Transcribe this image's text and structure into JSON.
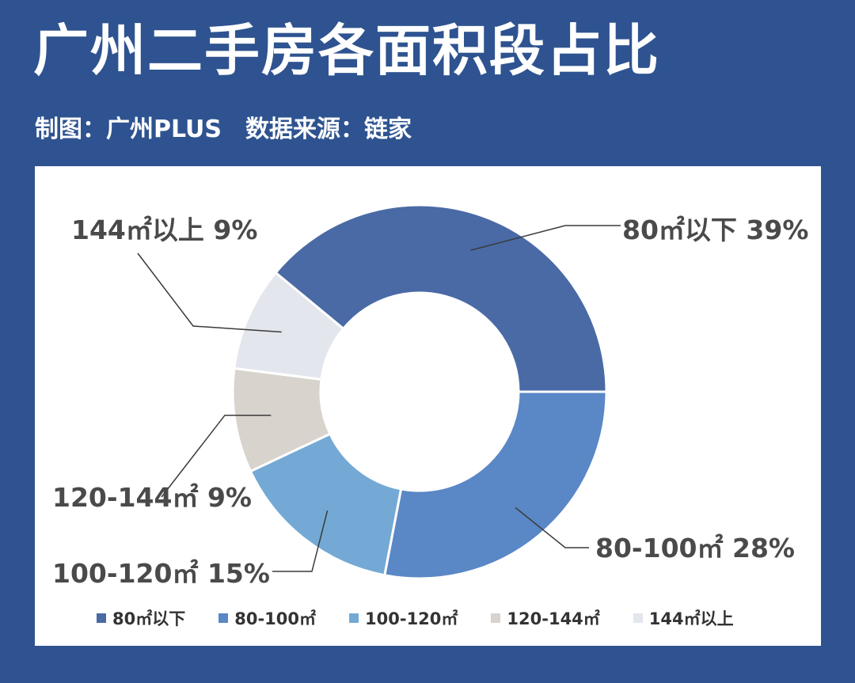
{
  "header": {
    "title": "广州二手房各面积段占比",
    "subtitle": "制图：广州PLUS　数据来源：链家"
  },
  "chart_data": {
    "type": "pie",
    "donut": true,
    "categories": [
      "80㎡以下",
      "80-100㎡",
      "100-120㎡",
      "120-144㎡",
      "144㎡以上"
    ],
    "values": [
      39,
      28,
      15,
      9,
      9
    ],
    "unit": "%",
    "callouts": [
      "80㎡以下  39%",
      "80-100㎡  28%",
      "100-120㎡  15%",
      "120-144㎡  9%",
      "144㎡以上  9%"
    ],
    "colors": [
      "#4a6aa6",
      "#5a87c5",
      "#73a9d4",
      "#d9d3cd",
      "#e4e6ee"
    ],
    "legend_position": "bottom"
  }
}
